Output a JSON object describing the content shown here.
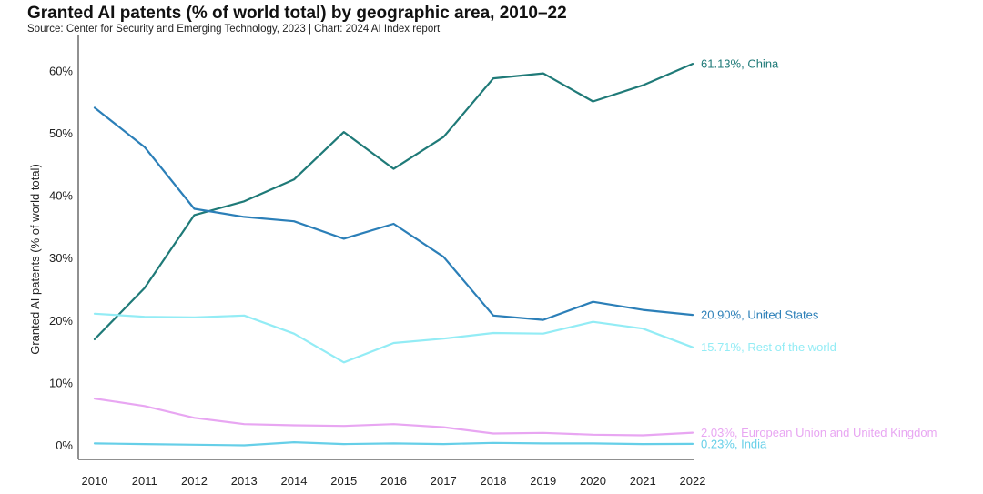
{
  "chart_data": {
    "type": "line",
    "title": "Granted AI patents (% of world total) by geographic area, 2010–22",
    "subtitle": "Source: Center for Security and Emerging Technology, 2023 | Chart: 2024 AI Index report",
    "xlabel": "",
    "ylabel": "Granted AI patents (% of world total)",
    "ylim": [
      0,
      65
    ],
    "yticks": [
      0,
      10,
      20,
      30,
      40,
      50,
      60
    ],
    "ytick_labels": [
      "0%",
      "10%",
      "20%",
      "30%",
      "40%",
      "50%",
      "60%"
    ],
    "x": [
      2010,
      2011,
      2012,
      2013,
      2014,
      2015,
      2016,
      2017,
      2018,
      2019,
      2020,
      2021,
      2022
    ],
    "x_labels": [
      "2010",
      "2011",
      "2012",
      "2013",
      "2014",
      "2015",
      "2016",
      "2017",
      "2018",
      "2019",
      "2020",
      "2021",
      "2022"
    ],
    "grid": false,
    "series": [
      {
        "name": "China",
        "color": "#1f7a78",
        "end_label": "61.13%, China",
        "values": [
          17.0,
          25.2,
          36.9,
          39.1,
          42.6,
          50.2,
          44.3,
          49.4,
          58.8,
          59.6,
          55.1,
          57.7,
          61.13
        ]
      },
      {
        "name": "United States",
        "color": "#2b7fb8",
        "end_label": "20.90%, United States",
        "values": [
          54.1,
          47.8,
          37.9,
          36.6,
          35.9,
          33.1,
          35.5,
          30.2,
          20.8,
          20.1,
          23.0,
          21.7,
          20.9
        ]
      },
      {
        "name": "Rest of the world",
        "color": "#93ecf5",
        "end_label": "15.71%, Rest of the world",
        "values": [
          21.1,
          20.6,
          20.5,
          20.8,
          17.9,
          13.3,
          16.4,
          17.1,
          18.0,
          17.9,
          19.8,
          18.7,
          15.71
        ]
      },
      {
        "name": "European Union and United Kingdom",
        "color": "#e8a6f2",
        "end_label": "2.03%, European Union and United Kingdom",
        "values": [
          7.5,
          6.3,
          4.4,
          3.4,
          3.2,
          3.1,
          3.4,
          2.9,
          1.9,
          2.0,
          1.7,
          1.6,
          2.03
        ]
      },
      {
        "name": "India",
        "color": "#66cfe8",
        "end_label": "0.23%, India",
        "values": [
          0.3,
          0.2,
          0.1,
          0.0,
          0.5,
          0.2,
          0.3,
          0.2,
          0.4,
          0.3,
          0.3,
          0.2,
          0.23
        ]
      }
    ]
  }
}
